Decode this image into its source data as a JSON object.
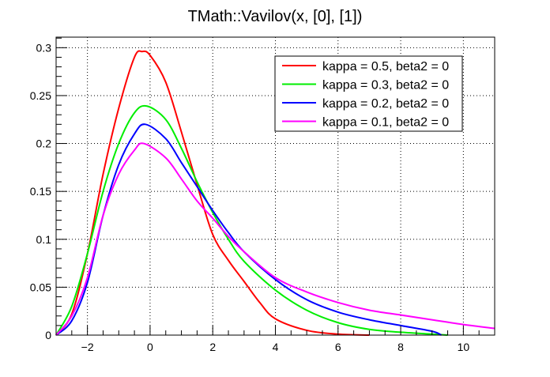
{
  "chart_data": {
    "type": "line",
    "title": "TMath::Vavilov(x, [0], [1])",
    "xlabel": "",
    "ylabel": "",
    "xlim": [
      -3,
      11
    ],
    "ylim": [
      0,
      0.311
    ],
    "grid": true,
    "legend_position": "top-right",
    "xticks": [
      -2,
      0,
      2,
      4,
      6,
      8,
      10
    ],
    "xtick_labels": [
      "−2",
      "0",
      "2",
      "4",
      "6",
      "8",
      "10"
    ],
    "yticks": [
      0,
      0.05,
      0.1,
      0.15,
      0.2,
      0.25,
      0.3
    ],
    "ytick_labels": [
      "0",
      "0.05",
      "0.1",
      "0.15",
      "0.2",
      "0.25",
      "0.3"
    ],
    "series": [
      {
        "name": "kappa = 0.5, beta2 = 0",
        "color": "#ff0000",
        "x": [
          -3,
          -2.5,
          -2,
          -1.5,
          -1,
          -0.5,
          -0.25,
          0,
          0.5,
          1,
          1.5,
          2,
          2.5,
          3,
          3.5,
          4,
          5,
          6,
          7
        ],
        "y": [
          0,
          0.022,
          0.085,
          0.168,
          0.237,
          0.29,
          0.296,
          0.292,
          0.264,
          0.212,
          0.157,
          0.105,
          0.078,
          0.056,
          0.034,
          0.017,
          0.005,
          0.001,
          0
        ]
      },
      {
        "name": "kappa = 0.3, beta2 = 0",
        "color": "#00ee00",
        "x": [
          -3,
          -2.5,
          -2,
          -1.5,
          -1,
          -0.5,
          -0.1,
          0.5,
          1,
          1.5,
          2,
          2.5,
          3,
          4,
          5,
          6,
          7,
          8,
          9,
          9.5
        ],
        "y": [
          0,
          0.03,
          0.085,
          0.15,
          0.2,
          0.232,
          0.239,
          0.225,
          0.195,
          0.16,
          0.128,
          0.1,
          0.077,
          0.047,
          0.026,
          0.013,
          0.006,
          0.003,
          0.001,
          0
        ]
      },
      {
        "name": "kappa = 0.2, beta2 = 0",
        "color": "#0000ff",
        "x": [
          -3,
          -2.5,
          -2,
          -1.5,
          -1,
          -0.5,
          -0.15,
          0.5,
          1,
          1.5,
          2,
          2.5,
          3,
          4,
          5,
          6,
          7,
          8,
          9,
          9.3
        ],
        "y": [
          0,
          0.015,
          0.055,
          0.125,
          0.178,
          0.21,
          0.22,
          0.205,
          0.18,
          0.155,
          0.13,
          0.107,
          0.087,
          0.058,
          0.037,
          0.024,
          0.016,
          0.01,
          0.004,
          0
        ]
      },
      {
        "name": "kappa = 0.1, beta2 = 0",
        "color": "#ff00ff",
        "x": [
          -3,
          -2.5,
          -2,
          -1.5,
          -1,
          -0.5,
          -0.2,
          0.5,
          1,
          1.5,
          2,
          2.5,
          3,
          4,
          5,
          6,
          7,
          8,
          9,
          10,
          11
        ],
        "y": [
          0,
          0.02,
          0.06,
          0.125,
          0.168,
          0.193,
          0.2,
          0.185,
          0.163,
          0.14,
          0.122,
          0.103,
          0.087,
          0.06,
          0.045,
          0.034,
          0.026,
          0.021,
          0.016,
          0.011,
          0.007
        ]
      }
    ]
  }
}
